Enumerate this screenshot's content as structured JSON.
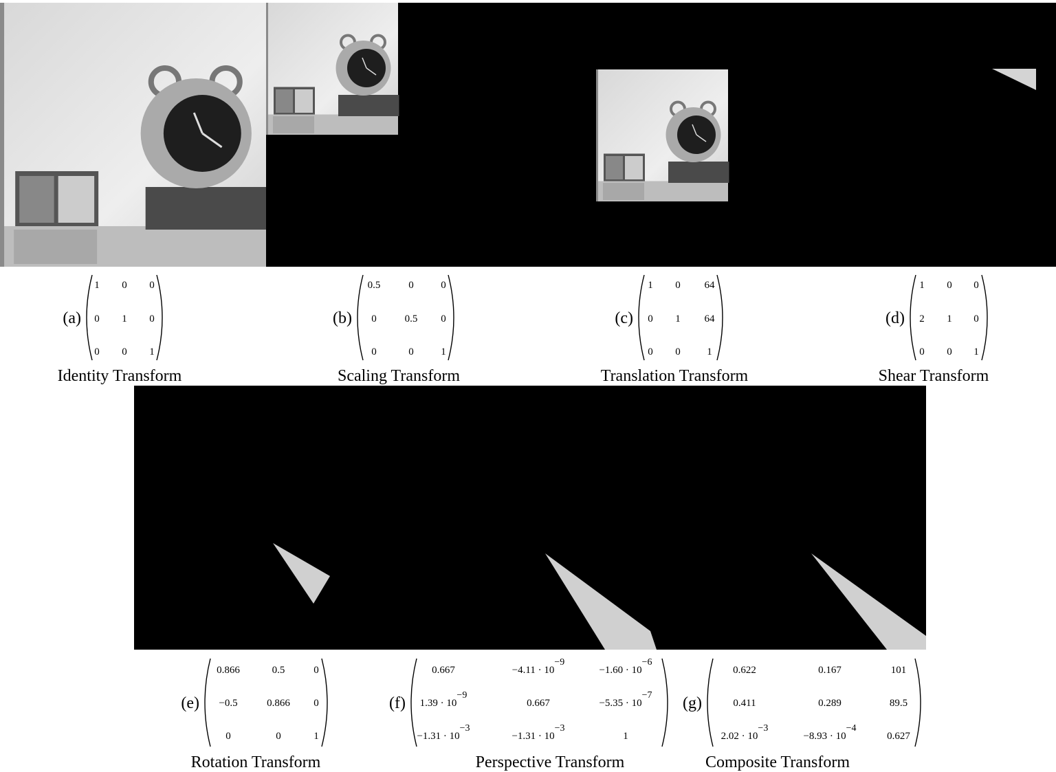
{
  "panels": [
    {
      "label": "(a)",
      "caption": "Identity Transform",
      "matrix": [
        [
          "1",
          "0",
          "0"
        ],
        [
          "0",
          "1",
          "0"
        ],
        [
          "0",
          "0",
          "1"
        ]
      ]
    },
    {
      "label": "(b)",
      "caption": "Scaling Transform",
      "matrix": [
        [
          "0.5",
          "0",
          "0"
        ],
        [
          "0",
          "0.5",
          "0"
        ],
        [
          "0",
          "0",
          "1"
        ]
      ]
    },
    {
      "label": "(c)",
      "caption": "Translation Transform",
      "matrix": [
        [
          "1",
          "0",
          "64"
        ],
        [
          "0",
          "1",
          "64"
        ],
        [
          "0",
          "0",
          "1"
        ]
      ]
    },
    {
      "label": "(d)",
      "caption": "Shear Transform",
      "matrix": [
        [
          "1",
          "0",
          "0"
        ],
        [
          "2",
          "1",
          "0"
        ],
        [
          "0",
          "0",
          "1"
        ]
      ]
    },
    {
      "label": "(e)",
      "caption": "Rotation Transform",
      "matrix": [
        [
          "0.866",
          "0.5",
          "0"
        ],
        [
          "−0.5",
          "0.866",
          "0"
        ],
        [
          "0",
          "0",
          "1"
        ]
      ]
    },
    {
      "label": "(f)",
      "caption": "Perspective Transform",
      "matrix": [
        [
          "0.667",
          {
            "text": "−4.11 · 10",
            "sup": "−9"
          },
          {
            "text": "−1.60 · 10",
            "sup": "−6"
          }
        ],
        [
          {
            "text": "1.39 · 10",
            "sup": "−9"
          },
          "0.667",
          {
            "text": "−5.35 · 10",
            "sup": "−7"
          }
        ],
        [
          {
            "text": "−1.31 · 10",
            "sup": "−3"
          },
          {
            "text": "−1.31 · 10",
            "sup": "−3"
          },
          "1"
        ]
      ]
    },
    {
      "label": "(g)",
      "caption": "Composite Transform",
      "matrix": [
        [
          "0.622",
          "0.167",
          "101"
        ],
        [
          "0.411",
          "0.289",
          "89.5"
        ],
        [
          {
            "text": "2.02 · 10",
            "sup": "−3"
          },
          {
            "text": "−8.93 · 10",
            "sup": "−4"
          },
          "0.627"
        ]
      ]
    }
  ]
}
